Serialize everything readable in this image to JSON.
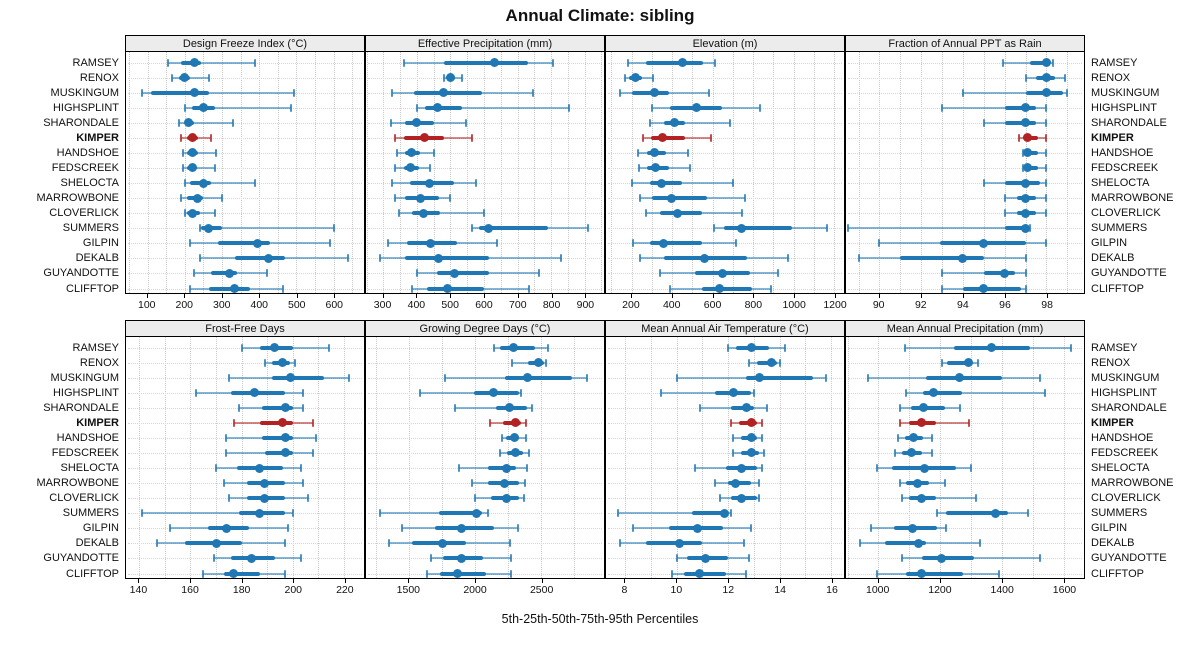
{
  "title": "Annual Climate: sibling",
  "xlabel": "5th-25th-50th-75th-95th Percentiles",
  "sites": [
    "RAMSEY",
    "RENOX",
    "MUSKINGUM",
    "HIGHSPLINT",
    "SHARONDALE",
    "KIMPER",
    "HANDSHOE",
    "FEDSCREEK",
    "SHELOCTA",
    "MARROWBONE",
    "CLOVERLICK",
    "SUMMERS",
    "GILPIN",
    "DEKALB",
    "GUYANDOTTE",
    "CLIFFTOP"
  ],
  "highlight_site": "KIMPER",
  "colors": {
    "series": "#1f77b4",
    "highlight": "#b22222",
    "header_bg": "#ececec",
    "gridline": "#c9c9c9"
  },
  "chart_data": {
    "type": "dotplot-percentiles",
    "percentiles": [
      "5th",
      "25th",
      "50th",
      "75th",
      "95th"
    ],
    "legend_note": "each row shows p5-p25-p50-p75-p95; dot = median",
    "panels": [
      {
        "label": "Design Freeze Index (°C)",
        "ticks": [
          100,
          200,
          300,
          400,
          500,
          600
        ],
        "domain": [
          42,
          682
        ],
        "minor_step": 50,
        "values": [
          [
            155,
            190,
            225,
            245,
            390
          ],
          [
            165,
            185,
            200,
            215,
            265
          ],
          [
            85,
            110,
            225,
            265,
            495
          ],
          [
            200,
            220,
            250,
            280,
            485
          ],
          [
            185,
            200,
            210,
            225,
            330
          ],
          [
            190,
            205,
            220,
            235,
            270
          ],
          [
            195,
            205,
            220,
            235,
            285
          ],
          [
            195,
            205,
            220,
            233,
            280
          ],
          [
            200,
            215,
            250,
            270,
            390
          ],
          [
            190,
            205,
            235,
            250,
            300
          ],
          [
            200,
            205,
            220,
            240,
            280
          ],
          [
            240,
            245,
            265,
            300,
            600
          ],
          [
            215,
            290,
            395,
            430,
            590
          ],
          [
            240,
            335,
            425,
            470,
            640
          ],
          [
            225,
            270,
            320,
            340,
            420
          ],
          [
            215,
            265,
            335,
            375,
            465
          ]
        ]
      },
      {
        "label": "Effective Precipitation (mm)",
        "ticks": [
          300,
          400,
          500,
          600,
          700,
          800,
          900
        ],
        "domain": [
          248,
          958
        ],
        "minor_step": 50,
        "values": [
          [
            360,
            480,
            630,
            730,
            805
          ],
          [
            480,
            490,
            500,
            515,
            535
          ],
          [
            325,
            390,
            480,
            595,
            745
          ],
          [
            400,
            425,
            460,
            535,
            855
          ],
          [
            322,
            365,
            400,
            450,
            545
          ],
          [
            335,
            360,
            423,
            480,
            565
          ],
          [
            340,
            365,
            385,
            410,
            450
          ],
          [
            335,
            360,
            380,
            405,
            440
          ],
          [
            325,
            380,
            437,
            510,
            575
          ],
          [
            335,
            365,
            410,
            465,
            500
          ],
          [
            345,
            385,
            420,
            470,
            600
          ],
          [
            565,
            585,
            612,
            790,
            910
          ],
          [
            315,
            370,
            440,
            520,
            640
          ],
          [
            290,
            365,
            465,
            615,
            830
          ],
          [
            400,
            460,
            512,
            615,
            765
          ],
          [
            385,
            430,
            490,
            600,
            735
          ]
        ]
      },
      {
        "label": "Elevation (m)",
        "ticks": [
          200,
          400,
          600,
          800,
          1000,
          1200
        ],
        "domain": [
          73,
          1249
        ],
        "minor_step": 100,
        "values": [
          [
            180,
            272,
            453,
            551,
            612
          ],
          [
            165,
            187,
            220,
            252,
            306
          ],
          [
            140,
            200,
            314,
            383,
            580
          ],
          [
            300,
            388,
            522,
            645,
            835
          ],
          [
            288,
            358,
            412,
            465,
            685
          ],
          [
            255,
            293,
            350,
            465,
            590
          ],
          [
            233,
            277,
            314,
            370,
            476
          ],
          [
            236,
            277,
            318,
            383,
            486
          ],
          [
            203,
            290,
            347,
            448,
            700
          ],
          [
            240,
            300,
            395,
            570,
            760
          ],
          [
            270,
            340,
            425,
            545,
            745
          ],
          [
            605,
            655,
            745,
            990,
            1165
          ],
          [
            205,
            290,
            358,
            545,
            715
          ],
          [
            240,
            360,
            560,
            770,
            970
          ],
          [
            340,
            515,
            650,
            785,
            925
          ],
          [
            390,
            545,
            635,
            795,
            890
          ]
        ]
      },
      {
        "label": "Fraction of Annual PPT as Rain",
        "ticks": [
          90,
          92,
          94,
          96,
          98
        ],
        "domain": [
          88.4,
          99.8
        ],
        "minor_step": 1,
        "values": [
          [
            95.9,
            97.2,
            98.0,
            98.1,
            98.3
          ],
          [
            97.0,
            97.5,
            98.0,
            98.4,
            98.9
          ],
          [
            94.0,
            97.0,
            98.0,
            98.8,
            99.0
          ],
          [
            93.0,
            96.0,
            97.0,
            97.5,
            98.0
          ],
          [
            95.0,
            96.0,
            97.0,
            97.5,
            98.0
          ],
          [
            96.7,
            96.9,
            97.1,
            97.6,
            98.0
          ],
          [
            96.9,
            97.0,
            97.1,
            97.6,
            98.0
          ],
          [
            96.9,
            97.0,
            97.1,
            97.6,
            98.0
          ],
          [
            95.0,
            96.0,
            97.0,
            97.7,
            98.0
          ],
          [
            96.0,
            96.6,
            97.0,
            97.5,
            98.0
          ],
          [
            96.0,
            96.6,
            97.0,
            97.5,
            98.0
          ],
          [
            88.5,
            96.0,
            97.0,
            97.1,
            97.2
          ],
          [
            90.0,
            92.9,
            95.0,
            97.0,
            98.0
          ],
          [
            89.0,
            91.0,
            94.0,
            95.0,
            97.0
          ],
          [
            93.0,
            95.0,
            96.0,
            96.5,
            97.0
          ],
          [
            93.0,
            94.0,
            95.0,
            96.8,
            97.0
          ]
        ]
      },
      {
        "label": "Frost-Free Days",
        "ticks": [
          140,
          160,
          180,
          200,
          220
        ],
        "domain": [
          134.8,
          227.8
        ],
        "minor_step": 10,
        "values": [
          [
            180,
            187,
            193,
            200,
            214
          ],
          [
            189,
            192,
            196,
            199,
            201
          ],
          [
            175,
            192,
            199,
            212,
            222
          ],
          [
            162,
            176,
            185,
            197,
            204
          ],
          [
            179,
            188,
            197,
            200,
            204
          ],
          [
            177,
            187,
            196,
            200,
            208
          ],
          [
            174,
            188,
            197,
            200,
            209
          ],
          [
            174,
            189,
            197,
            200,
            208
          ],
          [
            170,
            178,
            187,
            196,
            203
          ],
          [
            173,
            182,
            189,
            197,
            204
          ],
          [
            175,
            182,
            189,
            197,
            206
          ],
          [
            141,
            179,
            187,
            197,
            200
          ],
          [
            152,
            167,
            174,
            183,
            198
          ],
          [
            147,
            158,
            170,
            180,
            197
          ],
          [
            169,
            176,
            184,
            193,
            203
          ],
          [
            165,
            173,
            177,
            187,
            197
          ]
        ]
      },
      {
        "label": "Growing Degree Days (°C)",
        "ticks": [
          1500,
          2000,
          2500
        ],
        "domain": [
          1175,
          2975
        ],
        "minor_step": 250,
        "values": [
          [
            2140,
            2185,
            2290,
            2455,
            2550
          ],
          [
            2280,
            2400,
            2480,
            2520,
            2540
          ],
          [
            1775,
            2230,
            2395,
            2730,
            2850
          ],
          [
            1580,
            1990,
            2140,
            2330,
            2350
          ],
          [
            1845,
            2160,
            2260,
            2395,
            2430
          ],
          [
            2110,
            2210,
            2305,
            2350,
            2385
          ],
          [
            2200,
            2235,
            2300,
            2335,
            2385
          ],
          [
            2185,
            2240,
            2305,
            2360,
            2410
          ],
          [
            1880,
            2100,
            2240,
            2310,
            2395
          ],
          [
            1975,
            2100,
            2220,
            2330,
            2375
          ],
          [
            2000,
            2120,
            2240,
            2330,
            2370
          ],
          [
            1280,
            1725,
            2010,
            2050,
            2095
          ],
          [
            1445,
            1700,
            1895,
            2140,
            2325
          ],
          [
            1350,
            1525,
            1750,
            1935,
            2265
          ],
          [
            1665,
            1760,
            1895,
            2060,
            2275
          ],
          [
            1640,
            1735,
            1865,
            2085,
            2275
          ]
        ]
      },
      {
        "label": "Mean Annual Air Temperature (°C)",
        "ticks": [
          8,
          10,
          12,
          14,
          16
        ],
        "domain": [
          7.25,
          16.5
        ],
        "minor_step": 1,
        "values": [
          [
            12.0,
            12.3,
            12.9,
            13.6,
            14.2
          ],
          [
            12.8,
            13.1,
            13.7,
            13.9,
            14.0
          ],
          [
            10.0,
            12.7,
            13.2,
            15.3,
            15.8
          ],
          [
            9.4,
            11.5,
            12.2,
            12.9,
            13.0
          ],
          [
            10.9,
            12.1,
            12.7,
            13.0,
            13.5
          ],
          [
            12.1,
            12.4,
            12.9,
            13.1,
            13.3
          ],
          [
            12.2,
            12.5,
            12.9,
            13.1,
            13.3
          ],
          [
            12.2,
            12.5,
            12.9,
            13.2,
            13.4
          ],
          [
            10.7,
            11.9,
            12.5,
            13.1,
            13.3
          ],
          [
            11.5,
            12.0,
            12.3,
            12.9,
            13.2
          ],
          [
            11.7,
            12.1,
            12.5,
            13.1,
            13.2
          ],
          [
            7.7,
            10.6,
            11.85,
            12.0,
            12.1
          ],
          [
            8.3,
            9.7,
            10.8,
            11.8,
            12.9
          ],
          [
            7.8,
            8.8,
            10.1,
            11.0,
            12.6
          ],
          [
            10.0,
            10.4,
            11.1,
            12.0,
            12.8
          ],
          [
            9.8,
            10.3,
            10.9,
            11.9,
            12.7
          ]
        ]
      },
      {
        "label": "Mean Annual Precipitation (mm)",
        "ticks": [
          1000,
          1200,
          1400,
          1600
        ],
        "domain": [
          895,
          1666
        ],
        "minor_step": 100,
        "values": [
          [
            1085,
            1245,
            1365,
            1490,
            1625
          ],
          [
            1205,
            1222,
            1293,
            1305,
            1322
          ],
          [
            965,
            1155,
            1263,
            1400,
            1525
          ],
          [
            1090,
            1143,
            1180,
            1270,
            1540
          ],
          [
            1070,
            1105,
            1145,
            1215,
            1265
          ],
          [
            1070,
            1100,
            1140,
            1185,
            1295
          ],
          [
            1065,
            1085,
            1113,
            1145,
            1175
          ],
          [
            1055,
            1078,
            1108,
            1140,
            1175
          ],
          [
            995,
            1045,
            1150,
            1250,
            1300
          ],
          [
            1070,
            1090,
            1127,
            1163,
            1215
          ],
          [
            1075,
            1100,
            1140,
            1187,
            1315
          ],
          [
            1190,
            1220,
            1380,
            1420,
            1485
          ],
          [
            975,
            1050,
            1112,
            1190,
            1220
          ],
          [
            940,
            1020,
            1130,
            1155,
            1330
          ],
          [
            1075,
            1140,
            1205,
            1310,
            1525
          ],
          [
            995,
            1090,
            1140,
            1275,
            1390
          ]
        ]
      }
    ]
  }
}
